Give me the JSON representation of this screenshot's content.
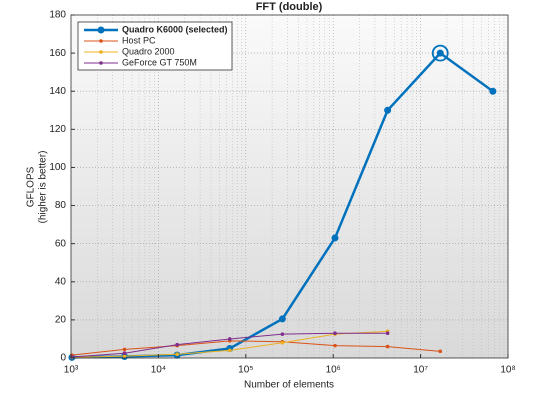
{
  "chart_data": {
    "type": "line",
    "title": "FFT (double)",
    "x_label": "Number of elements",
    "y_label": [
      "GFLOPS",
      "(higher is better)"
    ],
    "x": [
      1024,
      4096,
      16384,
      65536,
      262144,
      1048576,
      4194304,
      16777216,
      67108864
    ],
    "x_scale": "log",
    "xlim": [
      1000,
      100000000
    ],
    "xticks": [
      {
        "value": 1000,
        "label": "10³"
      },
      {
        "value": 10000,
        "label": "10⁴"
      },
      {
        "value": 100000,
        "label": "10⁵"
      },
      {
        "value": 1000000,
        "label": "10⁶"
      },
      {
        "value": 10000000,
        "label": "10⁷"
      },
      {
        "value": 100000000,
        "label": "10⁸"
      }
    ],
    "ylim": [
      0,
      180
    ],
    "yticks": [
      0,
      20,
      40,
      60,
      80,
      100,
      120,
      140,
      160,
      180
    ],
    "grid": true,
    "legend": "upper left",
    "highlight_index": 7,
    "series": [
      {
        "name": "Quadro K6000 (selected)",
        "color": "#0072bd",
        "selected": true,
        "values": [
          0.3,
          0.8,
          1.5,
          5,
          20.5,
          63,
          130,
          160,
          140
        ]
      },
      {
        "name": "Host PC",
        "color": "#d95319",
        "values": [
          1.5,
          4.5,
          6.5,
          9,
          8.5,
          6.5,
          6,
          3.5,
          null
        ]
      },
      {
        "name": "Quadro 2000",
        "color": "#edb120",
        "values": [
          0.3,
          1,
          2,
          4,
          8,
          12.5,
          14,
          null,
          null
        ]
      },
      {
        "name": "GeForce GT 750M",
        "color": "#7e2f8e",
        "values": [
          0.5,
          2.5,
          7,
          10,
          12.5,
          13,
          13,
          null,
          null
        ]
      }
    ]
  }
}
